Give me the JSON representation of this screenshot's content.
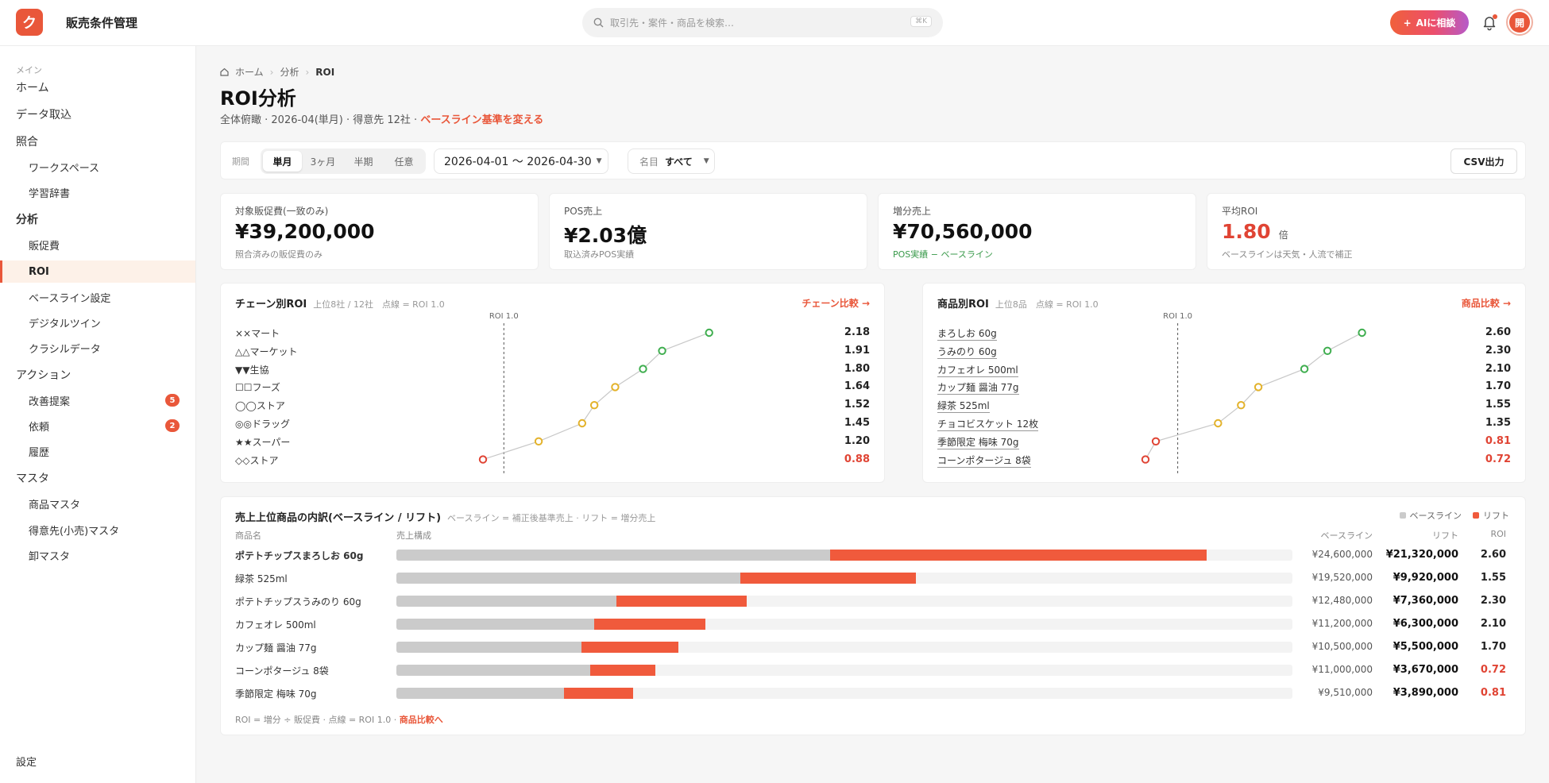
{
  "app": {
    "logo_char": "ク",
    "title": "販売条件管理"
  },
  "search": {
    "placeholder": "取引先・案件・商品を検索…",
    "shortcut": "⌘K"
  },
  "header": {
    "ai_label": "AIに相談",
    "avatar": "開"
  },
  "sidebar": {
    "main_section": "メイン",
    "home": "ホーム",
    "import": "データ取込",
    "matching": "照合",
    "workspace": "ワークスペース",
    "dictionary": "学習辞書",
    "analysis": "分析",
    "promo": "販促費",
    "roi": "ROI",
    "baseline": "ベースライン設定",
    "twin": "デジタルツイン",
    "kurashiru": "クラシルデータ",
    "action": "アクション",
    "proposal": "改善提案",
    "proposal_badge": "5",
    "request": "依頼",
    "request_badge": "2",
    "history": "履歴",
    "master": "マスタ",
    "product_master": "商品マスタ",
    "customer_master": "得意先(小売)マスタ",
    "wholesale_master": "卸マスタ",
    "settings": "設定"
  },
  "breadcrumb": {
    "home": "ホーム",
    "analysis": "分析",
    "current": "ROI"
  },
  "page": {
    "title": "ROI分析",
    "subtitle": "全体俯瞰 · 2026-04(単月) · 得意先 12社 · ",
    "subtitle_link": "ベースライン基準を変える"
  },
  "filters": {
    "period_label": "期間",
    "periods": [
      "単月",
      "3ヶ月",
      "半期",
      "任意"
    ],
    "range": "2026-04-01 〜 2026-04-30",
    "name_label": "名目",
    "name_value": "すべて",
    "csv": "CSV出力"
  },
  "kpis": [
    {
      "label": "対象販促費(一致のみ)",
      "value": "¥39,200,000",
      "unit": "",
      "note": "照合済みの販促費のみ",
      "note_color": "#888888",
      "value_color": "#111111"
    },
    {
      "label": "POS売上",
      "value": "¥2.03億",
      "unit": "",
      "note": "取込済みPOS実績",
      "note_color": "#888888",
      "value_color": "#111111"
    },
    {
      "label": "増分売上",
      "value": "¥70,560,000",
      "unit": "",
      "note": "POS実績 − ベースライン",
      "note_color": "#3a9a4b",
      "value_color": "#111111"
    },
    {
      "label": "平均ROI",
      "value": "1.80",
      "unit": "倍",
      "note": "ベースラインは天気・人流で補正",
      "note_color": "#888888",
      "value_color": "#e04434"
    }
  ],
  "chain_roi": {
    "title": "チェーン別ROI",
    "subtitle": "上位8社 / 12社　点線 = ROI 1.0",
    "link": "チェーン比較 →",
    "ref_label": "ROI 1.0",
    "rows": [
      {
        "name": "××マート",
        "roi": "2.18",
        "v": 2.18
      },
      {
        "name": "△△マーケット",
        "roi": "1.91",
        "v": 1.91
      },
      {
        "name": "▼▼生協",
        "roi": "1.80",
        "v": 1.8
      },
      {
        "name": "☐☐フーズ",
        "roi": "1.64",
        "v": 1.64
      },
      {
        "name": "◯◯ストア",
        "roi": "1.52",
        "v": 1.52
      },
      {
        "name": "◎◎ドラッグ",
        "roi": "1.45",
        "v": 1.45
      },
      {
        "name": "★★スーパー",
        "roi": "1.20",
        "v": 1.2
      },
      {
        "name": "◇◇ストア",
        "roi": "0.88",
        "v": 0.88
      }
    ]
  },
  "product_roi": {
    "title": "商品別ROI",
    "subtitle": "上位8品　点線 = ROI 1.0",
    "link": "商品比較 →",
    "ref_label": "ROI 1.0",
    "rows": [
      {
        "name": "まろしお 60g",
        "roi": "2.60",
        "v": 2.6
      },
      {
        "name": "うみのり 60g",
        "roi": "2.30",
        "v": 2.3
      },
      {
        "name": "カフェオレ 500ml",
        "roi": "2.10",
        "v": 2.1
      },
      {
        "name": "カップ麺 醤油 77g",
        "roi": "1.70",
        "v": 1.7
      },
      {
        "name": "緑茶 525ml",
        "roi": "1.55",
        "v": 1.55
      },
      {
        "name": "チョコビスケット 12枚",
        "roi": "1.35",
        "v": 1.35
      },
      {
        "name": "季節限定 梅味 70g",
        "roi": "0.81",
        "v": 0.81
      },
      {
        "name": "コーンポタージュ 8袋",
        "roi": "0.72",
        "v": 0.72
      }
    ]
  },
  "breakdown": {
    "title": "売上上位商品の内訳(ベースライン / リフト)",
    "subtitle": "ベースライン = 補正後基準売上 · リフト = 増分売上",
    "legend_base": "ベースライン",
    "legend_lift": "リフト",
    "col_name": "商品名",
    "col_bar": "売上構成",
    "col_base": "ベースライン",
    "col_lift": "リフト",
    "col_roi": "ROI",
    "colors": {
      "base": "#cbcbcb",
      "lift": "#f05a3c"
    },
    "rows": [
      {
        "name": "ポテトチップスまろしお 60g",
        "base": "¥24,600,000",
        "lift": "¥21,320,000",
        "roi": "2.60",
        "bv": 24.6,
        "lv": 21.32
      },
      {
        "name": "緑茶 525ml",
        "base": "¥19,520,000",
        "lift": "¥9,920,000",
        "roi": "1.55",
        "bv": 19.52,
        "lv": 9.92
      },
      {
        "name": "ポテトチップスうみのり 60g",
        "base": "¥12,480,000",
        "lift": "¥7,360,000",
        "roi": "2.30",
        "bv": 12.48,
        "lv": 7.36
      },
      {
        "name": "カフェオレ 500ml",
        "base": "¥11,200,000",
        "lift": "¥6,300,000",
        "roi": "2.10",
        "bv": 11.2,
        "lv": 6.3
      },
      {
        "name": "カップ麺 醤油 77g",
        "base": "¥10,500,000",
        "lift": "¥5,500,000",
        "roi": "1.70",
        "bv": 10.5,
        "lv": 5.5
      },
      {
        "name": "コーンポタージュ 8袋",
        "base": "¥11,000,000",
        "lift": "¥3,670,000",
        "roi": "0.72",
        "bv": 11.0,
        "lv": 3.67
      },
      {
        "name": "季節限定 梅味 70g",
        "base": "¥9,510,000",
        "lift": "¥3,890,000",
        "roi": "0.81",
        "bv": 9.51,
        "lv": 3.89
      }
    ],
    "footnote": "ROI = 増分 ÷ 販促費 · 点線 = ROI 1.0 · ",
    "footnote_link": "商品比較へ"
  }
}
